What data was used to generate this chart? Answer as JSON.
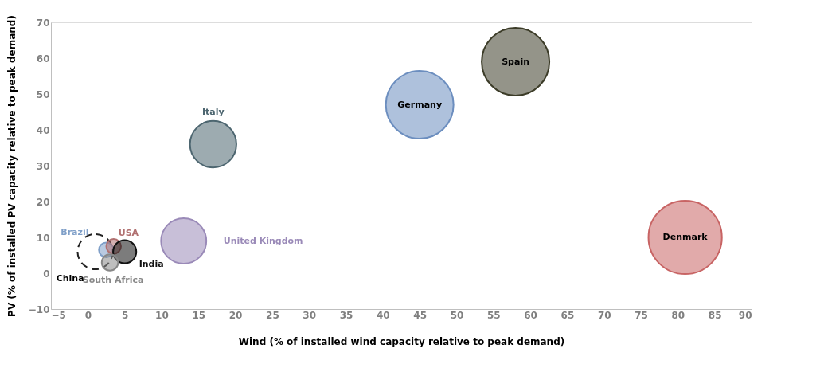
{
  "chart_data": {
    "type": "bubble",
    "xlabel": "Wind (% of installed wind capacity relative to peak demand)",
    "ylabel": "PV (% of installed PV capacity relative to peak demand)",
    "xlim": [
      -5,
      90
    ],
    "xticks": [
      -5,
      0,
      5,
      10,
      15,
      20,
      25,
      30,
      35,
      40,
      45,
      50,
      55,
      60,
      65,
      70,
      75,
      80,
      85,
      90
    ],
    "ylim": [
      -10,
      70
    ],
    "yticks": [
      -10,
      0,
      10,
      20,
      30,
      40,
      50,
      60,
      70
    ],
    "grid": false,
    "series": [
      {
        "name": "China",
        "color": "#222222",
        "x": [
          1
        ],
        "values": [
          6
        ],
        "sizes": [
          0.23
        ],
        "line_style": "dashed"
      },
      {
        "name": "Brazil",
        "color": "#7f9fc8",
        "x": [
          2.5
        ],
        "values": [
          6.5
        ],
        "sizes": [
          0.04
        ]
      },
      {
        "name": "USA",
        "color": "#b07070",
        "x": [
          3.5
        ],
        "values": [
          7.5
        ],
        "sizes": [
          0.04
        ]
      },
      {
        "name": "India",
        "color": "#111111",
        "x": [
          5
        ],
        "values": [
          6
        ],
        "sizes": [
          0.1
        ]
      },
      {
        "name": "South Africa",
        "color": "#888888",
        "x": [
          3
        ],
        "values": [
          3
        ],
        "sizes": [
          0.05
        ]
      },
      {
        "name": "United Kingdom",
        "color": "#9a8ab8",
        "x": [
          13
        ],
        "values": [
          9
        ],
        "sizes": [
          0.38
        ]
      },
      {
        "name": "Italy",
        "color": "#4d6670",
        "x": [
          17
        ],
        "values": [
          36
        ],
        "sizes": [
          0.4
        ]
      },
      {
        "name": "Germany",
        "color": "#6c8ebf",
        "x": [
          45
        ],
        "values": [
          47
        ],
        "sizes": [
          0.85
        ]
      },
      {
        "name": "Spain",
        "color": "#3c3c28",
        "x": [
          58
        ],
        "values": [
          59
        ],
        "sizes": [
          0.85
        ]
      },
      {
        "name": "Denmark",
        "color": "#c86464",
        "x": [
          81
        ],
        "values": [
          10
        ],
        "sizes": [
          1
        ]
      }
    ]
  }
}
